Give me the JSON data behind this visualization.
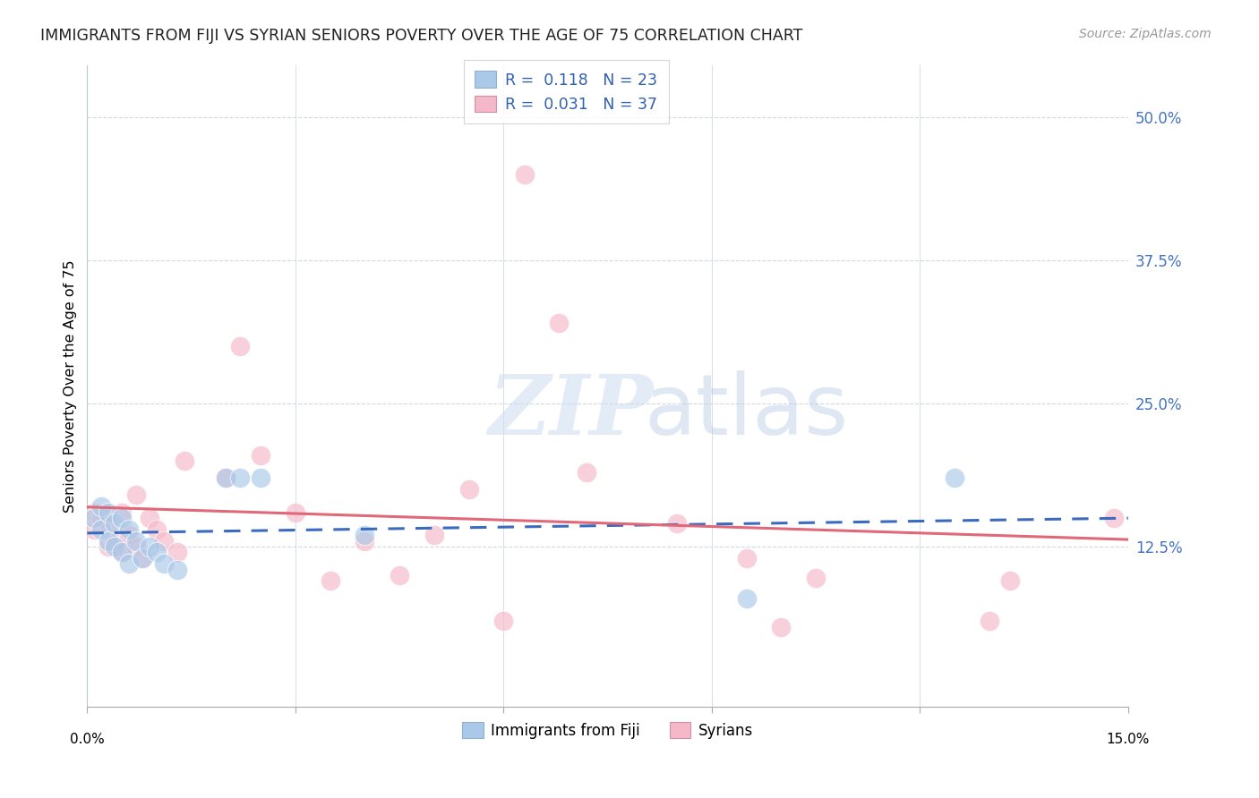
{
  "title": "IMMIGRANTS FROM FIJI VS SYRIAN SENIORS POVERTY OVER THE AGE OF 75 CORRELATION CHART",
  "source": "Source: ZipAtlas.com",
  "ylabel": "Seniors Poverty Over the Age of 75",
  "ytick_labels": [
    "12.5%",
    "25.0%",
    "37.5%",
    "50.0%"
  ],
  "ytick_values": [
    0.125,
    0.25,
    0.375,
    0.5
  ],
  "xlim": [
    0.0,
    0.15
  ],
  "ylim": [
    -0.015,
    0.545
  ],
  "legend_fiji_r": "0.118",
  "legend_fiji_n": "23",
  "legend_syria_r": "0.031",
  "legend_syria_n": "37",
  "fiji_color": "#aac8e8",
  "syria_color": "#f5b8c8",
  "fiji_trend_color": "#3a6bbf",
  "syria_trend_color": "#e06878",
  "fiji_x": [
    0.001,
    0.002,
    0.002,
    0.003,
    0.003,
    0.004,
    0.004,
    0.005,
    0.005,
    0.006,
    0.006,
    0.007,
    0.008,
    0.009,
    0.01,
    0.011,
    0.013,
    0.02,
    0.022,
    0.025,
    0.04,
    0.095,
    0.125
  ],
  "fiji_y": [
    0.15,
    0.16,
    0.14,
    0.155,
    0.13,
    0.145,
    0.125,
    0.15,
    0.12,
    0.14,
    0.11,
    0.13,
    0.115,
    0.125,
    0.12,
    0.11,
    0.105,
    0.185,
    0.185,
    0.185,
    0.135,
    0.08,
    0.185
  ],
  "syria_x": [
    0.001,
    0.001,
    0.002,
    0.003,
    0.003,
    0.004,
    0.005,
    0.005,
    0.006,
    0.007,
    0.007,
    0.008,
    0.009,
    0.01,
    0.011,
    0.013,
    0.014,
    0.02,
    0.022,
    0.025,
    0.03,
    0.035,
    0.04,
    0.045,
    0.05,
    0.055,
    0.06,
    0.063,
    0.068,
    0.072,
    0.085,
    0.095,
    0.1,
    0.105,
    0.13,
    0.133,
    0.148
  ],
  "syria_y": [
    0.155,
    0.14,
    0.15,
    0.145,
    0.125,
    0.13,
    0.155,
    0.12,
    0.135,
    0.17,
    0.125,
    0.115,
    0.15,
    0.14,
    0.13,
    0.12,
    0.2,
    0.185,
    0.3,
    0.205,
    0.155,
    0.095,
    0.13,
    0.1,
    0.135,
    0.175,
    0.06,
    0.45,
    0.32,
    0.19,
    0.145,
    0.115,
    0.055,
    0.098,
    0.06,
    0.095,
    0.15
  ],
  "grid_color": "#d0d8e0",
  "spine_color": "#c0c8d0"
}
